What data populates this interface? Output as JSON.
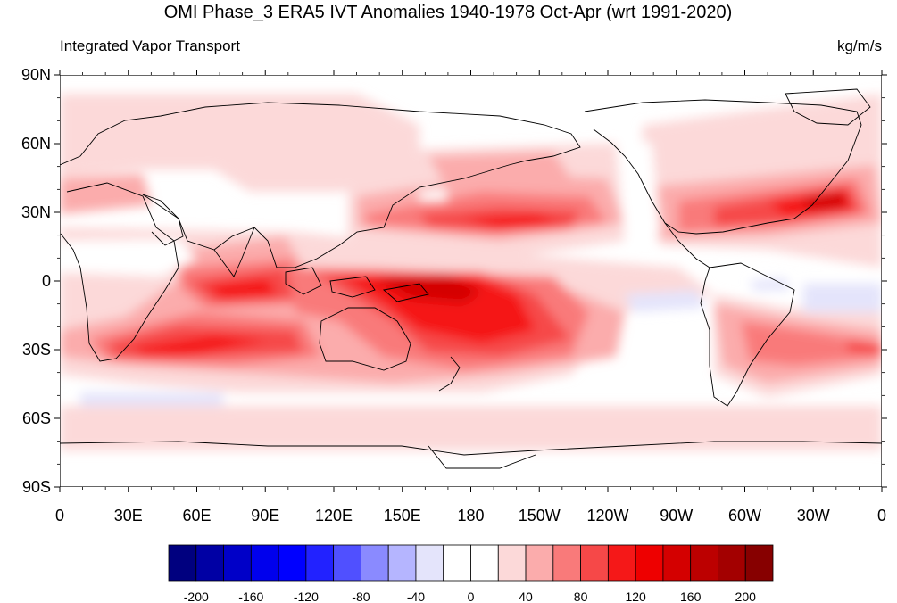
{
  "title": "OMI Phase_3 ERA5 IVT Anomalies 1940-1978 Oct-Apr (wrt 1991-2020)",
  "left_label": "Integrated Vapor Transport",
  "right_label": "kg/m/s",
  "lat_ticks": [
    "90N",
    "60N",
    "30N",
    "0",
    "30S",
    "60S",
    "90S"
  ],
  "lon_ticks": [
    "0",
    "30E",
    "60E",
    "90E",
    "120E",
    "150E",
    "180",
    "150W",
    "120W",
    "90W",
    "60W",
    "30W",
    "0"
  ],
  "colorbar": {
    "labels": [
      "-200",
      "-160",
      "-120",
      "-80",
      "-40",
      "0",
      "40",
      "80",
      "120",
      "160",
      "200"
    ],
    "colors": [
      "#00007f",
      "#0000a4",
      "#0000c8",
      "#0000ed",
      "#0000ff",
      "#2222ff",
      "#5050ff",
      "#8a8aff",
      "#b5b5ff",
      "#e4e4fb",
      "#ffffff",
      "#ffffff",
      "#fcd9d9",
      "#fbacac",
      "#f97a7a",
      "#f64848",
      "#f51818",
      "#ee0000",
      "#d40000",
      "#bc0000",
      "#a30000",
      "#870000"
    ]
  },
  "colors": {
    "coast": "#000000",
    "frame": "#000000"
  }
}
